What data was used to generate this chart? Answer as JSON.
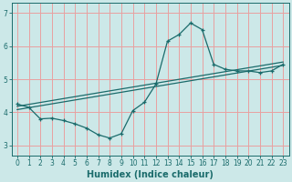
{
  "xlabel": "Humidex (Indice chaleur)",
  "background_color": "#cce8e8",
  "grid_color": "#e8a0a0",
  "line_color": "#1a6b6b",
  "xlim": [
    -0.5,
    23.5
  ],
  "ylim": [
    2.7,
    7.3
  ],
  "xticks": [
    0,
    1,
    2,
    3,
    4,
    5,
    6,
    7,
    8,
    9,
    10,
    11,
    12,
    13,
    14,
    15,
    16,
    17,
    18,
    19,
    20,
    21,
    22,
    23
  ],
  "yticks": [
    3,
    4,
    5,
    6,
    7
  ],
  "data_x": [
    0,
    1,
    2,
    3,
    4,
    5,
    6,
    7,
    8,
    9,
    10,
    11,
    12,
    13,
    14,
    15,
    16,
    17,
    18,
    19,
    20,
    21,
    22,
    23
  ],
  "data_y": [
    4.25,
    4.15,
    3.8,
    3.82,
    3.75,
    3.65,
    3.52,
    3.32,
    3.22,
    3.35,
    4.05,
    4.3,
    4.85,
    6.15,
    6.35,
    6.7,
    6.5,
    5.45,
    5.3,
    5.25,
    5.25,
    5.2,
    5.25,
    5.45
  ],
  "trend1_x": [
    0,
    23
  ],
  "trend1_y": [
    4.08,
    5.42
  ],
  "trend2_x": [
    0,
    23
  ],
  "trend2_y": [
    4.18,
    5.52
  ],
  "xlabel_fontsize": 7.0,
  "tick_fontsize": 5.5
}
